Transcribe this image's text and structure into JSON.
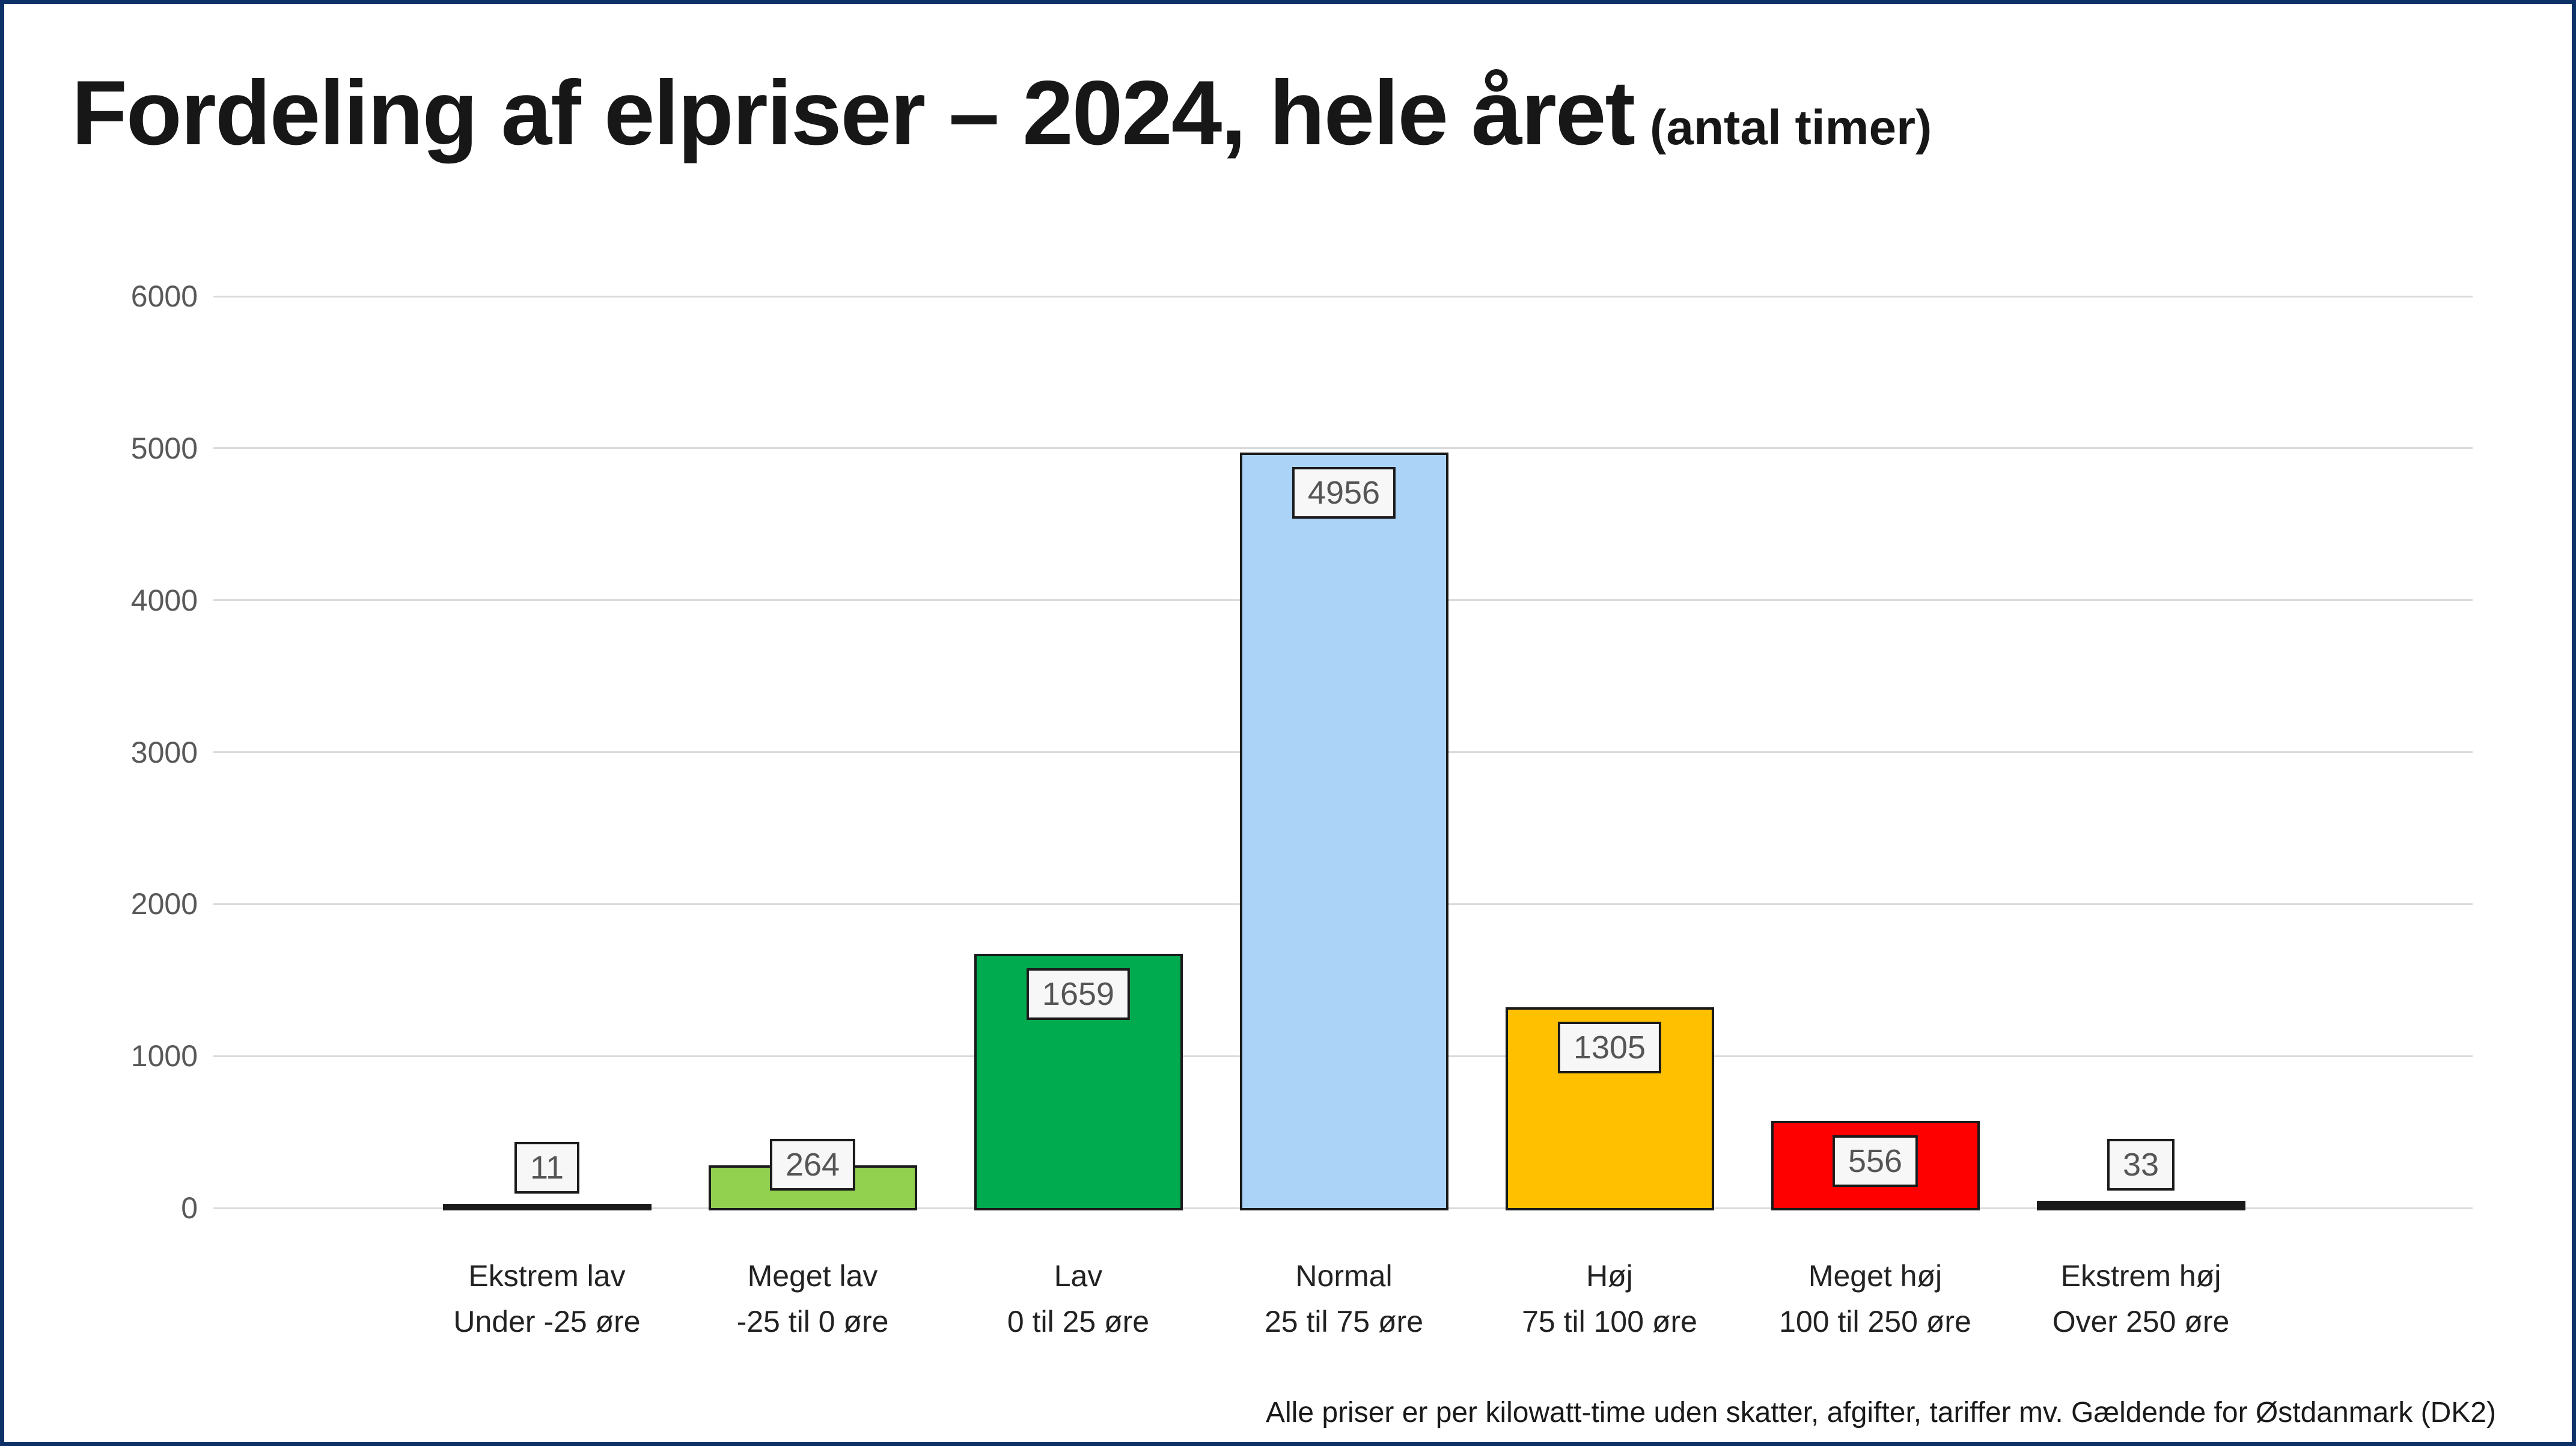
{
  "header": {
    "title": "Fordeling af elpriser – 2024, hele året",
    "subtitle": "(antal timer)"
  },
  "footer": {
    "note": "Alle priser er per kilowatt-time uden skatter, afgifter, tariffer mv. Gældende for Østdanmark (DK2)"
  },
  "frame": {
    "border_color": "#0d3166",
    "background": "#ffffff"
  },
  "chart_data": {
    "type": "bar",
    "title": "Fordeling af elpriser – 2024, hele året (antal timer)",
    "xlabel": "",
    "ylabel": "",
    "ylim": [
      0,
      6000
    ],
    "yticks": [
      0,
      1000,
      2000,
      3000,
      4000,
      5000,
      6000
    ],
    "grid": true,
    "legend_position": "none",
    "categories": [
      "Ekstrem lav",
      "Meget lav",
      "Lav",
      "Normal",
      "Høj",
      "Meget høj",
      "Ekstrem høj"
    ],
    "category_sublabels": [
      "Under -25 øre",
      "-25 til 0 øre",
      "0 til 25 øre",
      "25 til 75 øre",
      "75 til 100 øre",
      "100 til 250 øre",
      "Over 250 øre"
    ],
    "values": [
      11,
      264,
      1659,
      4956,
      1305,
      556,
      33
    ],
    "bar_colors": [
      "#1a1a1a",
      "#92d050",
      "#00ab50",
      "#abd3f7",
      "#ffc000",
      "#ff0000",
      "#1a1a1a"
    ],
    "bar_outline_color": "#1a1a1a",
    "gridline_color": "#dadada",
    "tick_label_color": "#595959",
    "value_label_box": {
      "fill": "#f7f7f7",
      "border": "#1a1a1a",
      "text_color": "#555555"
    }
  }
}
